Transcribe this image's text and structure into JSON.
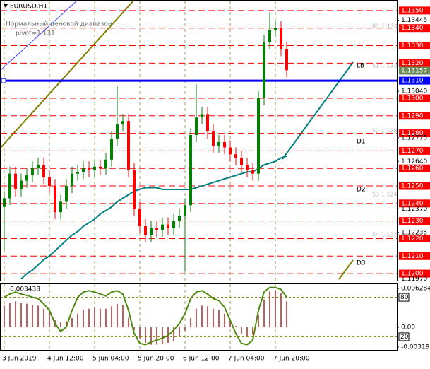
{
  "chart_data": [
    {
      "type": "candlestick",
      "title": "EURUSD,H1",
      "subtitle": "Нормальный ценовой диапазон",
      "note": "pivot=1.131",
      "categories": [
        "3 Jun 2019",
        null,
        null,
        null,
        null,
        null,
        null,
        null,
        "4 Jun 12:00",
        null,
        null,
        null,
        null,
        null,
        null,
        null,
        "5 Jun 04:00",
        null,
        null,
        null,
        null,
        null,
        null,
        null,
        "5 Jun 20:00",
        null,
        null,
        null,
        null,
        null,
        null,
        null,
        "6 Jun 12:00",
        null,
        null,
        null,
        null,
        null,
        null,
        null,
        "7 Jun 04:00",
        null,
        null,
        null,
        null,
        null,
        null,
        null,
        "7 Jun 20:00",
        null,
        null
      ],
      "open": [
        1.1238,
        1.1243,
        1.1257,
        1.1248,
        1.1253,
        1.1256,
        1.126,
        1.1262,
        1.1255,
        1.125,
        1.1235,
        1.1241,
        1.125,
        1.1257,
        1.1258,
        1.126,
        1.1259,
        1.1261,
        1.126,
        1.1265,
        1.1277,
        1.1285,
        1.1287,
        1.1259,
        1.1237,
        1.1227,
        1.1222,
        1.1226,
        1.1225,
        1.1228,
        1.1226,
        1.123,
        1.1233,
        1.1239,
        1.1279,
        1.1289,
        1.1291,
        1.1281,
        1.1273,
        1.1275,
        1.1272,
        1.1268,
        1.1266,
        1.1262,
        1.1259,
        1.1257,
        1.13,
        1.1332,
        1.1339,
        1.134,
        1.1328
      ],
      "high": [
        1.1247,
        1.1261,
        1.1261,
        1.1257,
        1.126,
        1.1264,
        1.1266,
        1.1266,
        1.1259,
        1.1254,
        1.1245,
        1.1254,
        1.1261,
        1.1262,
        1.1264,
        1.1264,
        1.1265,
        1.1265,
        1.1269,
        1.1281,
        1.1307,
        1.1291,
        1.1291,
        1.1263,
        1.1241,
        1.1231,
        1.123,
        1.123,
        1.1232,
        1.1232,
        1.1234,
        1.1237,
        1.1243,
        1.1283,
        1.1308,
        1.1295,
        1.1295,
        1.1285,
        1.1279,
        1.1279,
        1.1276,
        1.1272,
        1.127,
        1.1266,
        1.1263,
        1.1304,
        1.1336,
        1.1349,
        1.1344,
        1.1344,
        1.1332
      ],
      "low": [
        1.1213,
        1.1239,
        1.1244,
        1.1244,
        1.1249,
        1.1252,
        1.1256,
        1.1251,
        1.1246,
        1.1231,
        1.1231,
        1.1237,
        1.1246,
        1.1253,
        1.1254,
        1.1255,
        1.1255,
        1.1256,
        1.1256,
        1.1261,
        1.1273,
        1.1281,
        1.1255,
        1.1233,
        1.1223,
        1.1218,
        1.1218,
        1.1221,
        1.1221,
        1.1222,
        1.1222,
        1.1226,
        1.1201,
        1.1235,
        1.1275,
        1.1285,
        1.1277,
        1.1269,
        1.1269,
        1.1268,
        1.1264,
        1.1262,
        1.1258,
        1.1255,
        1.1253,
        1.1253,
        1.1296,
        1.1328,
        1.1335,
        1.1324,
        1.1312
      ],
      "close": [
        1.1243,
        1.1257,
        1.1248,
        1.1253,
        1.1256,
        1.126,
        1.1262,
        1.1255,
        1.125,
        1.1235,
        1.1241,
        1.125,
        1.1257,
        1.1258,
        1.126,
        1.1259,
        1.1261,
        1.126,
        1.1265,
        1.1277,
        1.1285,
        1.1287,
        1.1259,
        1.1237,
        1.1227,
        1.1222,
        1.1226,
        1.1225,
        1.1228,
        1.1226,
        1.123,
        1.1233,
        1.1239,
        1.1279,
        1.1289,
        1.1291,
        1.1281,
        1.1273,
        1.1275,
        1.1272,
        1.1268,
        1.1266,
        1.1262,
        1.1259,
        1.1257,
        1.13,
        1.1332,
        1.1339,
        1.134,
        1.1328,
        1.1316
      ],
      "up_color": "#008000",
      "down_color": "#ff0000",
      "ma": {
        "color": "#008080",
        "values": [
          null,
          null,
          null,
          1.1197,
          1.12,
          1.1202,
          1.1205,
          1.1208,
          1.121,
          1.1213,
          1.1216,
          1.1219,
          1.1222,
          1.1224,
          1.1227,
          1.1229,
          1.1231,
          1.1234,
          1.1236,
          1.1238,
          1.1241,
          1.1243,
          1.1245,
          1.1247,
          1.1248,
          1.1249,
          1.1249,
          1.1249,
          1.1248,
          1.1248,
          1.1248,
          1.1248,
          1.1248,
          1.1248,
          1.1249,
          1.125,
          1.1251,
          1.1252,
          1.1253,
          1.1254,
          1.1255,
          1.1256,
          1.1257,
          1.1258,
          1.1258,
          1.126,
          1.1262,
          1.1263,
          1.1264,
          1.1266,
          1.1267
        ]
      },
      "ylim": [
        1.1196,
        1.1356
      ],
      "levels": [
        {
          "value": 1.135,
          "label": "1.1350"
        },
        {
          "value": 1.134,
          "label": "1.1340"
        },
        {
          "value": 1.133,
          "label": "1.1330"
        },
        {
          "value": 1.132,
          "label": "1.1320"
        },
        {
          "value": 1.13,
          "label": "1.1300"
        },
        {
          "value": 1.129,
          "label": "1.1290"
        },
        {
          "value": 1.128,
          "label": "1.1280"
        },
        {
          "value": 1.127,
          "label": "1.1270"
        },
        {
          "value": 1.126,
          "label": "1.1260"
        },
        {
          "value": 1.125,
          "label": "1.1250"
        },
        {
          "value": 1.124,
          "label": "1.1240"
        },
        {
          "value": 1.123,
          "label": "1.1230"
        },
        {
          "value": 1.122,
          "label": "1.1220"
        },
        {
          "value": 1.121,
          "label": "1.1210"
        },
        {
          "value": 1.12,
          "label": "1.1200"
        }
      ],
      "level_color": "#ff0000",
      "yticks": [
        {
          "value": 1.13445,
          "label": "1.13445"
        },
        {
          "value": 1.1304,
          "label": "1.13040"
        },
        {
          "value": 1.12775,
          "label": "1.12775"
        },
        {
          "value": 1.1264,
          "label": "1.12640"
        },
        {
          "value": 1.1237,
          "label": "1.12370"
        },
        {
          "value": 1.12235,
          "label": "1.12235"
        },
        {
          "value": 1.1197,
          "label": "1.11970"
        }
      ],
      "pivot": {
        "value": 1.131,
        "label": "1.1310",
        "color": "#0000ff"
      },
      "last": {
        "value": 1.13157,
        "label": "1.13157"
      },
      "annotations": [
        "LB",
        "D1",
        "D2",
        "D3",
        "R1 1.134",
        "S1 1.132",
        "S2 1.128",
        "S3 1.124",
        "S4 1.122"
      ]
    },
    {
      "type": "oscillator",
      "current": 0.003438,
      "ylim": [
        -0.00365,
        0.00697
      ],
      "yticks": [
        0.006284,
        {
          "value": 0,
          "label": "0.00"
        },
        -0.003193
      ],
      "y2lim": [
        0,
        100
      ],
      "y2ticks": [
        80,
        20
      ],
      "hist_color": "#a52a2a",
      "hist": [
        0.0035,
        0.004,
        0.0042,
        0.004,
        0.0038,
        0.0036,
        0.0035,
        0.003,
        0.0025,
        0.0012,
        0.0008,
        0.001,
        0.0015,
        0.0022,
        0.0028,
        0.003,
        0.0032,
        0.003,
        0.003,
        0.0034,
        0.0038,
        0.0036,
        0.0015,
        -0.0005,
        -0.0018,
        -0.0025,
        -0.0028,
        -0.0028,
        -0.0027,
        -0.0025,
        -0.0022,
        -0.0015,
        -0.0005,
        0.0015,
        0.003,
        0.0035,
        0.0034,
        0.003,
        0.0028,
        0.0022,
        0.0012,
        0.0002,
        -0.001,
        -0.0015,
        -0.0012,
        0.002,
        0.0045,
        0.0058,
        0.006,
        0.0055,
        0.0042
      ],
      "series": [
        {
          "color": "#4f8a10",
          "axis": "y2",
          "values": [
            80,
            85,
            88,
            85,
            83,
            80,
            78,
            70,
            60,
            40,
            28,
            35,
            60,
            80,
            88,
            90,
            88,
            85,
            82,
            88,
            90,
            85,
            60,
            25,
            10,
            8,
            12,
            15,
            18,
            22,
            30,
            40,
            55,
            78,
            88,
            90,
            85,
            78,
            75,
            65,
            45,
            25,
            10,
            8,
            15,
            60,
            88,
            95,
            95,
            92,
            80
          ]
        }
      ]
    }
  ]
}
